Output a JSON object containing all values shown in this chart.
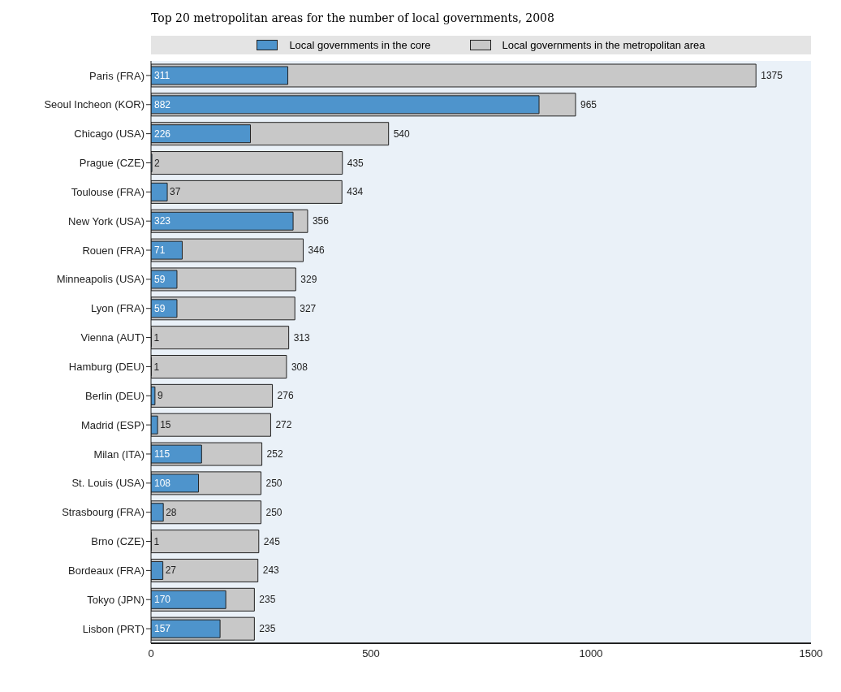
{
  "chart_data": {
    "type": "bar",
    "orientation": "horizontal",
    "title": "Top 20 metropolitan areas for the number of local governments, 2008",
    "categories": [
      "Paris (FRA)",
      "Seoul Incheon (KOR)",
      "Chicago (USA)",
      "Prague (CZE)",
      "Toulouse (FRA)",
      "New York (USA)",
      "Rouen (FRA)",
      "Minneapolis (USA)",
      "Lyon (FRA)",
      "Vienna (AUT)",
      "Hamburg (DEU)",
      "Berlin (DEU)",
      "Madrid (ESP)",
      "Milan (ITA)",
      "St. Louis (USA)",
      "Strasbourg (FRA)",
      "Brno (CZE)",
      "Bordeaux (FRA)",
      "Tokyo (JPN)",
      "Lisbon (PRT)"
    ],
    "series": [
      {
        "name": "Local governments in the core",
        "color": "#4e94cc",
        "values": [
          311,
          882,
          226,
          2,
          37,
          323,
          71,
          59,
          59,
          1,
          1,
          9,
          15,
          115,
          108,
          28,
          1,
          27,
          170,
          157
        ]
      },
      {
        "name": "Local governments in the metropolitan area",
        "color": "#c8c8c8",
        "values": [
          1375,
          965,
          540,
          435,
          434,
          356,
          346,
          329,
          327,
          313,
          308,
          276,
          272,
          252,
          250,
          250,
          245,
          243,
          235,
          235
        ]
      }
    ],
    "xlim": [
      0,
      1500
    ],
    "xticks": [
      0,
      500,
      1000,
      1500
    ],
    "data_labels": true,
    "legend": "top"
  }
}
